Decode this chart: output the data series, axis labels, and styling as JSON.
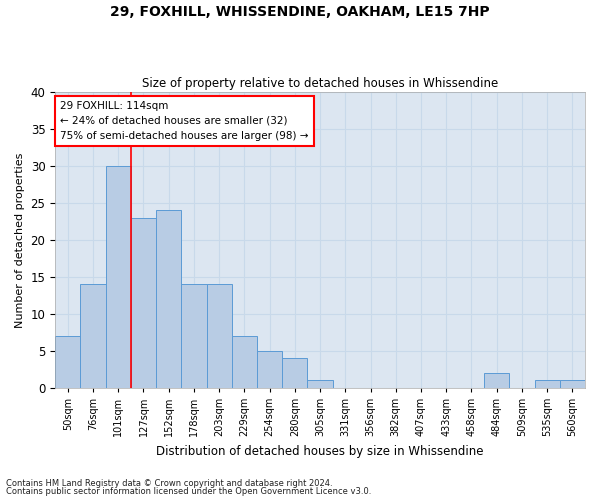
{
  "title1": "29, FOXHILL, WHISSENDINE, OAKHAM, LE15 7HP",
  "title2": "Size of property relative to detached houses in Whissendine",
  "xlabel": "Distribution of detached houses by size in Whissendine",
  "ylabel": "Number of detached properties",
  "categories": [
    "50sqm",
    "76sqm",
    "101sqm",
    "127sqm",
    "152sqm",
    "178sqm",
    "203sqm",
    "229sqm",
    "254sqm",
    "280sqm",
    "305sqm",
    "331sqm",
    "356sqm",
    "382sqm",
    "407sqm",
    "433sqm",
    "458sqm",
    "484sqm",
    "509sqm",
    "535sqm",
    "560sqm"
  ],
  "values": [
    7,
    14,
    30,
    23,
    24,
    14,
    14,
    7,
    5,
    4,
    1,
    0,
    0,
    0,
    0,
    0,
    0,
    2,
    0,
    1,
    1
  ],
  "bar_color": "#b8cce4",
  "bar_edge_color": "#5b9bd5",
  "grid_color": "#c8d9ea",
  "bg_color": "#dce6f1",
  "annotation_text": "29 FOXHILL: 114sqm\n← 24% of detached houses are smaller (32)\n75% of semi-detached houses are larger (98) →",
  "vline_bin": 2,
  "ylim": [
    0,
    40
  ],
  "yticks": [
    0,
    5,
    10,
    15,
    20,
    25,
    30,
    35,
    40
  ],
  "footnote1": "Contains HM Land Registry data © Crown copyright and database right 2024.",
  "footnote2": "Contains public sector information licensed under the Open Government Licence v3.0."
}
